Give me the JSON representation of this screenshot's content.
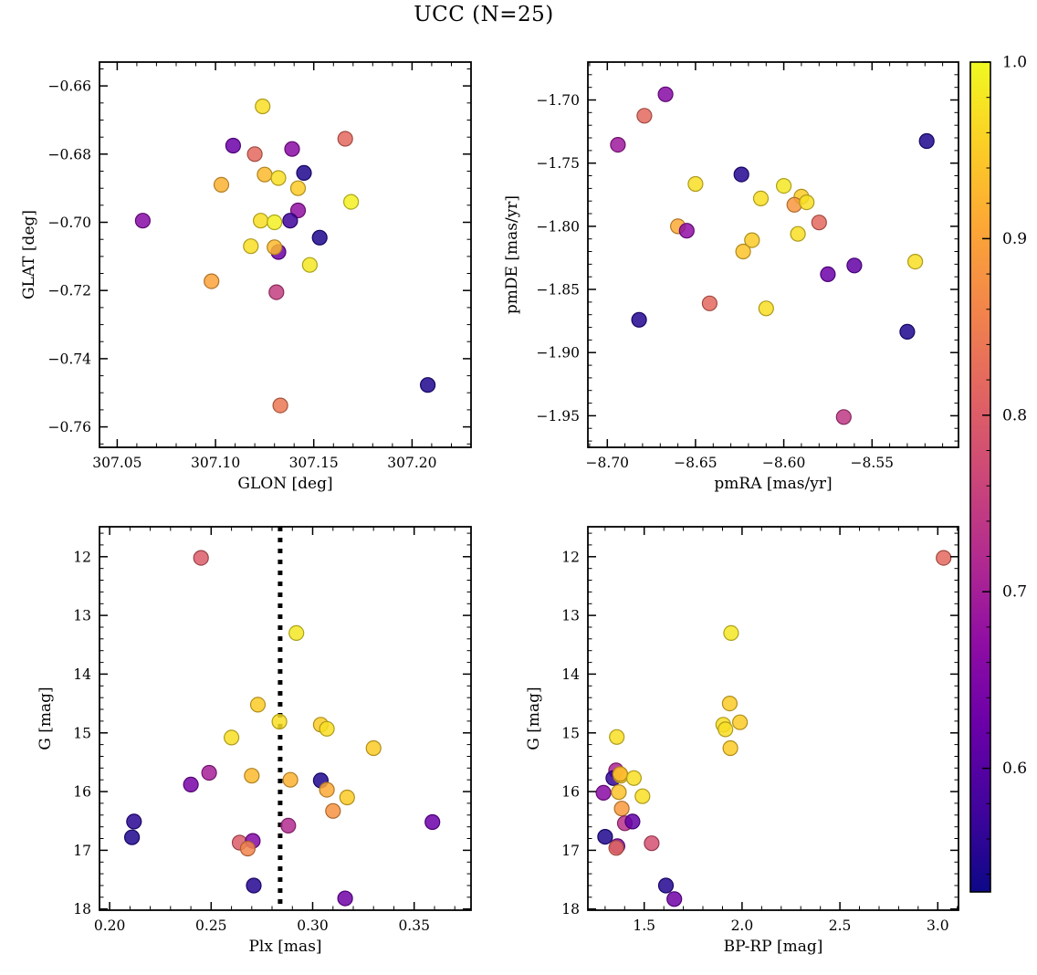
{
  "figure": {
    "title": "UCC (N=25)"
  },
  "colormap": {
    "name": "plasma",
    "stops": [
      "#0d0887",
      "#41049d",
      "#6a00a8",
      "#8f0da4",
      "#b12a90",
      "#cc4778",
      "#e16462",
      "#f2844b",
      "#fca636",
      "#fcce25",
      "#f0f921"
    ],
    "point_alpha": 0.85
  },
  "colorbar": {
    "vmin": 0.53,
    "vmax": 1.0,
    "minor_step": 0.02,
    "ticks": [
      {
        "v": 1.0,
        "label": "1.0"
      },
      {
        "v": 0.9,
        "label": "0.9"
      },
      {
        "v": 0.8,
        "label": "0.8"
      },
      {
        "v": 0.7,
        "label": "0.7"
      },
      {
        "v": 0.6,
        "label": "0.6"
      }
    ]
  },
  "chart_data": [
    {
      "id": "glon-glat",
      "type": "scatter",
      "xlabel": "GLON [deg]",
      "ylabel": "GLAT [deg]",
      "x_range": [
        307.041,
        307.23
      ],
      "y_range": [
        -0.653,
        -0.766
      ],
      "x_minor_step": 0.01,
      "y_minor_step": 0.005,
      "xticks": [
        {
          "v": 307.05,
          "label": "307.05"
        },
        {
          "v": 307.1,
          "label": "307.10"
        },
        {
          "v": 307.15,
          "label": "307.15"
        },
        {
          "v": 307.2,
          "label": "307.20"
        }
      ],
      "yticks": [
        {
          "v": -0.66,
          "label": "−0.66"
        },
        {
          "v": -0.68,
          "label": "−0.68"
        },
        {
          "v": -0.7,
          "label": "−0.70"
        },
        {
          "v": -0.72,
          "label": "−0.72"
        },
        {
          "v": -0.74,
          "label": "−0.74"
        },
        {
          "v": -0.76,
          "label": "−0.76"
        }
      ],
      "points": [
        [
          307.124,
          -0.666,
          0.97
        ],
        [
          307.109,
          -0.6775,
          0.625
        ],
        [
          307.12,
          -0.68,
          0.82
        ],
        [
          307.139,
          -0.6785,
          0.665
        ],
        [
          307.166,
          -0.6755,
          0.82
        ],
        [
          307.125,
          -0.686,
          0.93
        ],
        [
          307.132,
          -0.687,
          0.97
        ],
        [
          307.145,
          -0.6855,
          0.545
        ],
        [
          307.142,
          -0.69,
          0.95
        ],
        [
          307.103,
          -0.689,
          0.92
        ],
        [
          307.169,
          -0.694,
          0.99
        ],
        [
          307.142,
          -0.6965,
          0.675
        ],
        [
          307.138,
          -0.6995,
          0.575
        ],
        [
          307.123,
          -0.6995,
          0.97
        ],
        [
          307.13,
          -0.7,
          0.99
        ],
        [
          307.063,
          -0.6995,
          0.66
        ],
        [
          307.153,
          -0.7045,
          0.545
        ],
        [
          307.118,
          -0.707,
          0.97
        ],
        [
          307.132,
          -0.7087,
          0.625
        ],
        [
          307.13,
          -0.7073,
          0.93
        ],
        [
          307.148,
          -0.7125,
          0.98
        ],
        [
          307.098,
          -0.7173,
          0.9
        ],
        [
          307.131,
          -0.7205,
          0.75
        ],
        [
          307.133,
          -0.7537,
          0.84
        ],
        [
          307.208,
          -0.7477,
          0.545
        ]
      ]
    },
    {
      "id": "pmra-pmde",
      "type": "scatter",
      "xlabel": "pmRA [mas/yr]",
      "ylabel": "pmDE [mas/yr]",
      "x_range": [
        -8.711,
        -8.501
      ],
      "y_range": [
        -1.67,
        -1.975
      ],
      "x_minor_step": 0.01,
      "y_minor_step": 0.01,
      "xticks": [
        {
          "v": -8.7,
          "label": "−8.70"
        },
        {
          "v": -8.65,
          "label": "−8.65"
        },
        {
          "v": -8.6,
          "label": "−8.60"
        },
        {
          "v": -8.55,
          "label": "−8.55"
        }
      ],
      "yticks": [
        {
          "v": -1.7,
          "label": "−1.70"
        },
        {
          "v": -1.75,
          "label": "−1.75"
        },
        {
          "v": -1.8,
          "label": "−1.80"
        },
        {
          "v": -1.85,
          "label": "−1.85"
        },
        {
          "v": -1.9,
          "label": "−1.90"
        },
        {
          "v": -1.95,
          "label": "−1.95"
        }
      ],
      "points": [
        [
          -8.667,
          -1.6955,
          0.66
        ],
        [
          -8.679,
          -1.7125,
          0.82
        ],
        [
          -8.694,
          -1.7355,
          0.69
        ],
        [
          -8.519,
          -1.7325,
          0.545
        ],
        [
          -8.624,
          -1.759,
          0.55
        ],
        [
          -8.65,
          -1.7665,
          0.97
        ],
        [
          -8.6,
          -1.768,
          0.98
        ],
        [
          -8.613,
          -1.778,
          0.97
        ],
        [
          -8.59,
          -1.7765,
          0.95
        ],
        [
          -8.594,
          -1.783,
          0.885
        ],
        [
          -8.587,
          -1.781,
          0.97
        ],
        [
          -8.66,
          -1.8,
          0.91
        ],
        [
          -8.655,
          -1.8035,
          0.67
        ],
        [
          -8.58,
          -1.797,
          0.82
        ],
        [
          -8.592,
          -1.806,
          0.97
        ],
        [
          -8.618,
          -1.811,
          0.95
        ],
        [
          -8.623,
          -1.82,
          0.94
        ],
        [
          -8.575,
          -1.838,
          0.625
        ],
        [
          -8.56,
          -1.831,
          0.615
        ],
        [
          -8.5255,
          -1.828,
          0.97
        ],
        [
          -8.642,
          -1.861,
          0.82
        ],
        [
          -8.61,
          -1.865,
          0.97
        ],
        [
          -8.682,
          -1.874,
          0.55
        ],
        [
          -8.53,
          -1.8835,
          0.545
        ],
        [
          -8.566,
          -1.951,
          0.74
        ]
      ]
    },
    {
      "id": "plx-g",
      "type": "scatter",
      "xlabel": "Plx [mas]",
      "ylabel": "G [mag]",
      "x_range": [
        0.195,
        0.378
      ],
      "y_range": [
        11.49,
        18.02
      ],
      "x_minor_step": 0.01,
      "y_minor_step": 0.2,
      "vline": {
        "x": 0.284,
        "style": "dotted",
        "color": "#000000"
      },
      "xticks": [
        {
          "v": 0.2,
          "label": "0.20"
        },
        {
          "v": 0.25,
          "label": "0.25"
        },
        {
          "v": 0.3,
          "label": "0.30"
        },
        {
          "v": 0.35,
          "label": "0.35"
        }
      ],
      "yticks": [
        {
          "v": 12,
          "label": "12"
        },
        {
          "v": 13,
          "label": "13"
        },
        {
          "v": 14,
          "label": "14"
        },
        {
          "v": 15,
          "label": "15"
        },
        {
          "v": 16,
          "label": "16"
        },
        {
          "v": 17,
          "label": "17"
        },
        {
          "v": 18,
          "label": "18"
        }
      ],
      "points": [
        [
          0.245,
          12.02,
          0.8
        ],
        [
          0.292,
          13.3,
          0.98
        ],
        [
          0.273,
          14.52,
          0.95
        ],
        [
          0.2836,
          14.81,
          0.97
        ],
        [
          0.304,
          14.86,
          0.95
        ],
        [
          0.307,
          14.93,
          0.97
        ],
        [
          0.26,
          15.08,
          0.97
        ],
        [
          0.33,
          15.26,
          0.95
        ],
        [
          0.249,
          15.68,
          0.7
        ],
        [
          0.27,
          15.73,
          0.93
        ],
        [
          0.289,
          15.8,
          0.92
        ],
        [
          0.304,
          15.81,
          0.545
        ],
        [
          0.24,
          15.88,
          0.64
        ],
        [
          0.307,
          15.97,
          0.91
        ],
        [
          0.317,
          16.1,
          0.95
        ],
        [
          0.31,
          16.33,
          0.88
        ],
        [
          0.212,
          16.51,
          0.555
        ],
        [
          0.211,
          16.78,
          0.545
        ],
        [
          0.359,
          16.52,
          0.625
        ],
        [
          0.288,
          16.58,
          0.72
        ],
        [
          0.264,
          16.87,
          0.8
        ],
        [
          0.2705,
          16.84,
          0.655
        ],
        [
          0.268,
          16.97,
          0.86
        ],
        [
          0.271,
          17.6,
          0.55
        ],
        [
          0.316,
          17.82,
          0.63
        ]
      ]
    },
    {
      "id": "bprp-g",
      "type": "scatter",
      "xlabel": "BP-RP [mag]",
      "ylabel": "G [mag]",
      "x_range": [
        1.212,
        3.106
      ],
      "y_range": [
        11.49,
        18.02
      ],
      "x_minor_step": 0.1,
      "y_minor_step": 0.2,
      "xticks": [
        {
          "v": 1.5,
          "label": "1.5"
        },
        {
          "v": 2.0,
          "label": "2.0"
        },
        {
          "v": 2.5,
          "label": "2.5"
        },
        {
          "v": 3.0,
          "label": "3.0"
        }
      ],
      "yticks": [
        {
          "v": 12,
          "label": "12"
        },
        {
          "v": 13,
          "label": "13"
        },
        {
          "v": 14,
          "label": "14"
        },
        {
          "v": 15,
          "label": "15"
        },
        {
          "v": 16,
          "label": "16"
        },
        {
          "v": 17,
          "label": "17"
        },
        {
          "v": 18,
          "label": "18"
        }
      ],
      "points": [
        [
          3.03,
          12.02,
          0.82
        ],
        [
          1.944,
          13.3,
          0.98
        ],
        [
          1.937,
          14.5,
          0.95
        ],
        [
          1.904,
          14.86,
          0.97
        ],
        [
          1.989,
          14.82,
          0.95
        ],
        [
          1.915,
          14.94,
          0.97
        ],
        [
          1.36,
          15.07,
          0.97
        ],
        [
          1.94,
          15.26,
          0.95
        ],
        [
          1.356,
          15.64,
          0.71
        ],
        [
          1.342,
          15.77,
          0.565
        ],
        [
          1.38,
          15.73,
          0.95
        ],
        [
          1.377,
          15.7,
          0.93
        ],
        [
          1.447,
          15.77,
          0.97
        ],
        [
          1.292,
          16.02,
          0.665
        ],
        [
          1.37,
          16.01,
          0.94
        ],
        [
          1.491,
          16.08,
          0.97
        ],
        [
          1.385,
          16.29,
          0.89
        ],
        [
          1.401,
          16.54,
          0.73
        ],
        [
          1.44,
          16.51,
          0.615
        ],
        [
          1.3,
          16.77,
          0.545
        ],
        [
          1.363,
          16.93,
          0.655
        ],
        [
          1.357,
          16.96,
          0.82
        ],
        [
          1.538,
          16.88,
          0.78
        ],
        [
          1.611,
          17.6,
          0.55
        ],
        [
          1.654,
          17.83,
          0.63
        ]
      ]
    }
  ]
}
